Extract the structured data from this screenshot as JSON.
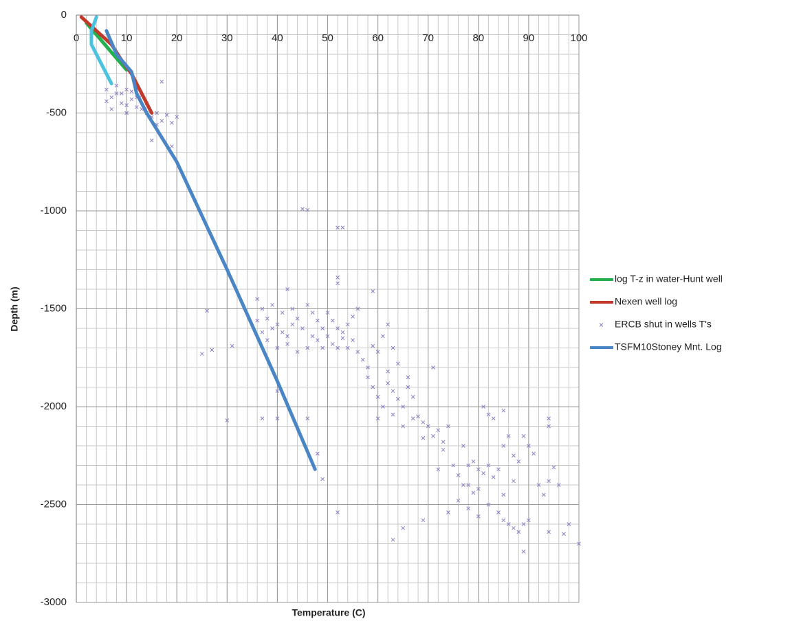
{
  "chart_data": {
    "type": "scatter-line",
    "x_label": "Temperature (C)",
    "y_label": "Depth (m)",
    "xlim": [
      0,
      100
    ],
    "xticks": [
      0,
      10,
      20,
      30,
      40,
      50,
      60,
      70,
      80,
      90,
      100
    ],
    "ylim": [
      -3000,
      0
    ],
    "yticks": [
      0,
      -500,
      -1000,
      -1500,
      -2000,
      -2500,
      -3000
    ],
    "grid": true,
    "legend": "right",
    "series": [
      {
        "name": "log T-z in water-Hunt well",
        "kind": "line",
        "color": "#22b14c",
        "x": [
          2,
          4,
          6,
          8,
          10
        ],
        "values": [
          -40,
          -100,
          -160,
          -220,
          -280
        ]
      },
      {
        "name": "Nexen well log",
        "kind": "line",
        "color": "#c0392b",
        "x": [
          1,
          4,
          7,
          9,
          11,
          13,
          15
        ],
        "values": [
          -10,
          -80,
          -150,
          -230,
          -300,
          -400,
          -500
        ]
      },
      {
        "name": "ERCB shut in wells T's",
        "kind": "scatter",
        "color": "#8e7cc3",
        "x": [
          6,
          7,
          8,
          9,
          10,
          11,
          12,
          13,
          6,
          8,
          9,
          10,
          11,
          12,
          13,
          14,
          15,
          16,
          17,
          18,
          19,
          20,
          17,
          15,
          19,
          14,
          16,
          7,
          10,
          12,
          45,
          46,
          52,
          53,
          52,
          52,
          59,
          42,
          25,
          26,
          27,
          31,
          36,
          37,
          38,
          39,
          40,
          41,
          42,
          43,
          44,
          45,
          46,
          47,
          48,
          49,
          50,
          51,
          52,
          53,
          54,
          55,
          56,
          57,
          58,
          59,
          60,
          61,
          62,
          63,
          50,
          51,
          52,
          53,
          54,
          55,
          48,
          46,
          44,
          42,
          40,
          38,
          37,
          36,
          39,
          41,
          43,
          47,
          49,
          56,
          58,
          59,
          60,
          61,
          62,
          63,
          64,
          65,
          66,
          67,
          68,
          69,
          70,
          71,
          72,
          73,
          74,
          66,
          64,
          62,
          60,
          63,
          65,
          67,
          69,
          71,
          73,
          75,
          76,
          77,
          78,
          79,
          80,
          81,
          82,
          83,
          84,
          78,
          79,
          80,
          81,
          82,
          83,
          85,
          86,
          87,
          88,
          89,
          90,
          91,
          76,
          78,
          80,
          82,
          84,
          85,
          86,
          87,
          88,
          89,
          90,
          92,
          93,
          94,
          94,
          95,
          94,
          96,
          85,
          87,
          30,
          37,
          40,
          40,
          46,
          48,
          49,
          52,
          63,
          65,
          69,
          89,
          100,
          98,
          97,
          94,
          72,
          74,
          77,
          85
        ],
        "values": [
          -380,
          -420,
          -400,
          -450,
          -380,
          -430,
          -470,
          -410,
          -440,
          -360,
          -400,
          -460,
          -390,
          -420,
          -480,
          -450,
          -520,
          -500,
          -540,
          -510,
          -550,
          -520,
          -340,
          -640,
          -670,
          -500,
          -560,
          -480,
          -500,
          -360,
          -990,
          -995,
          -1085,
          -1085,
          -1340,
          -1370,
          -1410,
          -1400,
          -1730,
          -1510,
          -1710,
          -1690,
          -1450,
          -1500,
          -1550,
          -1600,
          -1580,
          -1620,
          -1680,
          -1500,
          -1550,
          -1600,
          -1480,
          -1520,
          -1560,
          -1600,
          -1640,
          -1680,
          -1700,
          -1620,
          -1580,
          -1660,
          -1720,
          -1760,
          -1800,
          -1690,
          -1720,
          -1640,
          -1580,
          -1700,
          -1520,
          -1560,
          -1600,
          -1650,
          -1700,
          -1540,
          -1660,
          -1700,
          -1720,
          -1640,
          -1700,
          -1660,
          -1620,
          -1560,
          -1480,
          -1520,
          -1580,
          -1640,
          -1700,
          -1500,
          -1850,
          -1900,
          -1950,
          -2000,
          -1880,
          -1920,
          -1960,
          -2000,
          -1900,
          -1950,
          -2050,
          -2080,
          -2100,
          -2150,
          -2120,
          -2180,
          -2100,
          -1850,
          -1780,
          -1820,
          -2060,
          -2040,
          -2100,
          -2060,
          -2160,
          -1800,
          -2220,
          -2300,
          -2350,
          -2400,
          -2300,
          -2280,
          -2320,
          -2340,
          -2300,
          -2360,
          -2320,
          -2400,
          -2440,
          -2420,
          -2000,
          -2040,
          -2060,
          -2200,
          -2150,
          -2250,
          -2280,
          -2150,
          -2200,
          -2240,
          -2480,
          -2520,
          -2560,
          -2500,
          -2540,
          -2580,
          -2600,
          -2620,
          -2640,
          -2600,
          -2580,
          -2400,
          -2450,
          -2100,
          -2060,
          -2310,
          -2380,
          -2400,
          -2450,
          -2380,
          -2070,
          -2060,
          -2060,
          -1920,
          -2060,
          -2240,
          -2370,
          -2540,
          -2680,
          -2620,
          -2580,
          -2740,
          -2700,
          -2600,
          -2650,
          -2640,
          -2320,
          -2540,
          -2200,
          -2020
        ]
      },
      {
        "name": "TSFM10Stoney Mnt. Log",
        "kind": "line",
        "color": "#4a86c5",
        "x": [
          6,
          8,
          11,
          12,
          14,
          20,
          30,
          40,
          47.5
        ],
        "values": [
          -80,
          -200,
          -290,
          -400,
          -500,
          -750,
          -1300,
          -1870,
          -2320
        ]
      },
      {
        "name": null,
        "kind": "line",
        "color": "#4bc3e0",
        "x": [
          4,
          3,
          3,
          5,
          7
        ],
        "values": [
          -10,
          -80,
          -150,
          -250,
          -350
        ]
      }
    ]
  }
}
